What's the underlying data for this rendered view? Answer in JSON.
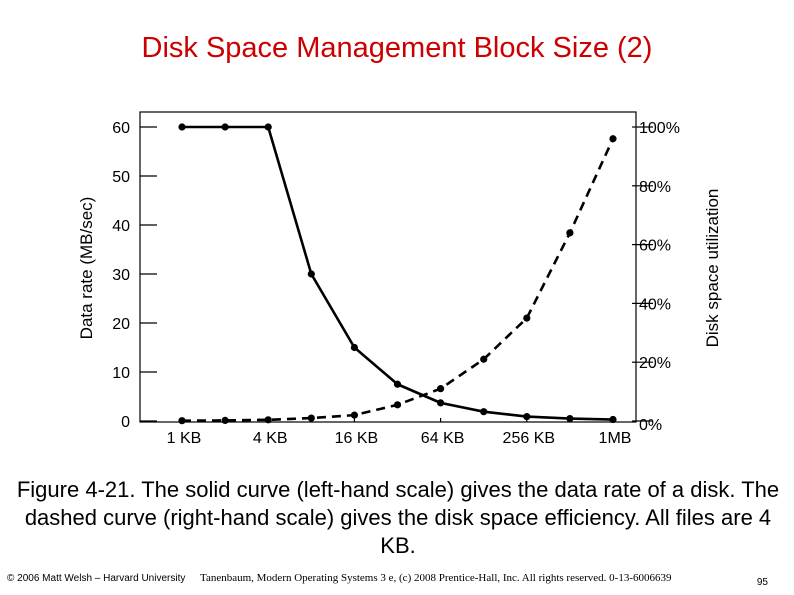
{
  "slide": {
    "title": "Disk Space Management Block Size (2)",
    "caption": "Figure 4-21. The solid curve (left-hand scale) gives the data rate of a disk. The dashed curve (right-hand scale) gives the disk space efficiency. All files are 4 KB.",
    "footer_left": "© 2006 Matt Welsh – Harvard University",
    "footer_credit": "Tanenbaum, Modern Operating Systems 3 e, (c) 2008 Prentice-Hall, Inc. All rights reserved. 0-13-6006639",
    "page_number": "95"
  },
  "chart_data": {
    "type": "line",
    "x_tick_labels": [
      "1 KB",
      "4 KB",
      "16 KB",
      "64 KB",
      "256 KB",
      "1MB"
    ],
    "x_log2_kb": [
      0,
      1,
      2,
      3,
      4,
      5,
      6,
      7,
      8,
      9,
      10
    ],
    "ylabel_left": "Data rate (MB/sec)",
    "ylabel_right": "Disk space utilization",
    "ylim_left": [
      0,
      60
    ],
    "ylim_right": [
      0,
      100
    ],
    "yticks_left": [
      "0",
      "10",
      "20",
      "30",
      "40",
      "50",
      "60"
    ],
    "yticks_right": [
      "0%",
      "20%",
      "40%",
      "60%",
      "80%",
      "100%"
    ],
    "series": [
      {
        "axis": "left",
        "style": "solid",
        "values": [
          60,
          60,
          60,
          30,
          15,
          7.5,
          3.7,
          1.9,
          0.9,
          0.5,
          0.3
        ]
      },
      {
        "axis": "right",
        "style": "dashed",
        "values": [
          0.1,
          0.2,
          0.4,
          1,
          2,
          5.5,
          11,
          21,
          35,
          64,
          96
        ]
      }
    ]
  }
}
